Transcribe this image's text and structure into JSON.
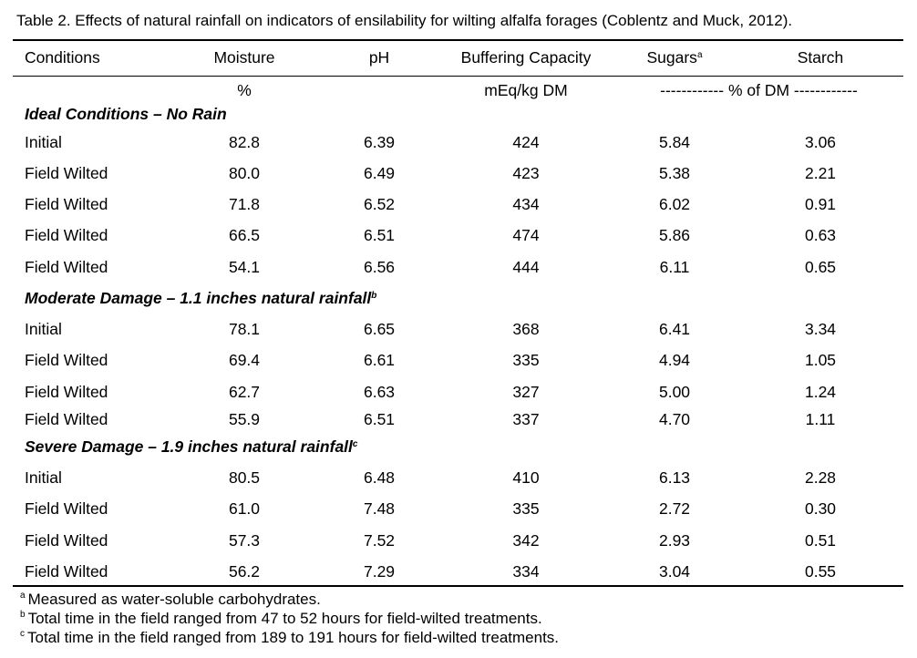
{
  "caption": "Table 2. Effects of natural rainfall on indicators of ensilability for wilting alfalfa forages (Coblentz and Muck, 2012).",
  "headers": [
    "Conditions",
    "Moisture",
    "pH",
    "Buffering Capacity",
    "Sugars",
    "Starch"
  ],
  "header_sugars_sup": "a",
  "units": {
    "moisture": "%",
    "buffering": "mEq/kg DM",
    "sugars_starch": "------------ % of DM ------------"
  },
  "sections": [
    {
      "title": "Ideal Conditions – No Rain",
      "title_sup": "",
      "rows": [
        [
          "Initial",
          "82.8",
          "6.39",
          "424",
          "5.84",
          "3.06"
        ],
        [
          "Field Wilted",
          "80.0",
          "6.49",
          "423",
          "5.38",
          "2.21"
        ],
        [
          "Field Wilted",
          "71.8",
          "6.52",
          "434",
          "6.02",
          "0.91"
        ],
        [
          "Field Wilted",
          "66.5",
          "6.51",
          "474",
          "5.86",
          "0.63"
        ],
        [
          "Field Wilted",
          "54.1",
          "6.56",
          "444",
          "6.11",
          "0.65"
        ]
      ]
    },
    {
      "title": "Moderate Damage – 1.1 inches natural rainfall",
      "title_sup": "b",
      "rows": [
        [
          "Initial",
          "78.1",
          "6.65",
          "368",
          "6.41",
          "3.34"
        ],
        [
          "Field Wilted",
          "69.4",
          "6.61",
          "335",
          "4.94",
          "1.05"
        ],
        [
          "Field Wilted",
          "62.7",
          "6.63",
          "327",
          "5.00",
          "1.24"
        ],
        [
          "Field Wilted",
          "55.9",
          "6.51",
          "337",
          "4.70",
          "1.11"
        ]
      ]
    },
    {
      "title": "Severe Damage – 1.9 inches natural rainfall",
      "title_sup": "c",
      "rows": [
        [
          "Initial",
          "80.5",
          "6.48",
          "410",
          "6.13",
          "2.28"
        ],
        [
          "Field Wilted",
          "61.0",
          "7.48",
          "335",
          "2.72",
          "0.30"
        ],
        [
          "Field Wilted",
          "57.3",
          "7.52",
          "342",
          "2.93",
          "0.51"
        ],
        [
          "Field Wilted",
          "56.2",
          "7.29",
          "334",
          "3.04",
          "0.55"
        ]
      ]
    }
  ],
  "footnotes": [
    {
      "mark": "a",
      "text": "Measured as water-soluble carbohydrates."
    },
    {
      "mark": "b",
      "text": "Total time in the field ranged from 47 to 52 hours for field-wilted treatments."
    },
    {
      "mark": "c",
      "text": "Total time in the field ranged from 189 to 191 hours for field-wilted treatments."
    }
  ]
}
